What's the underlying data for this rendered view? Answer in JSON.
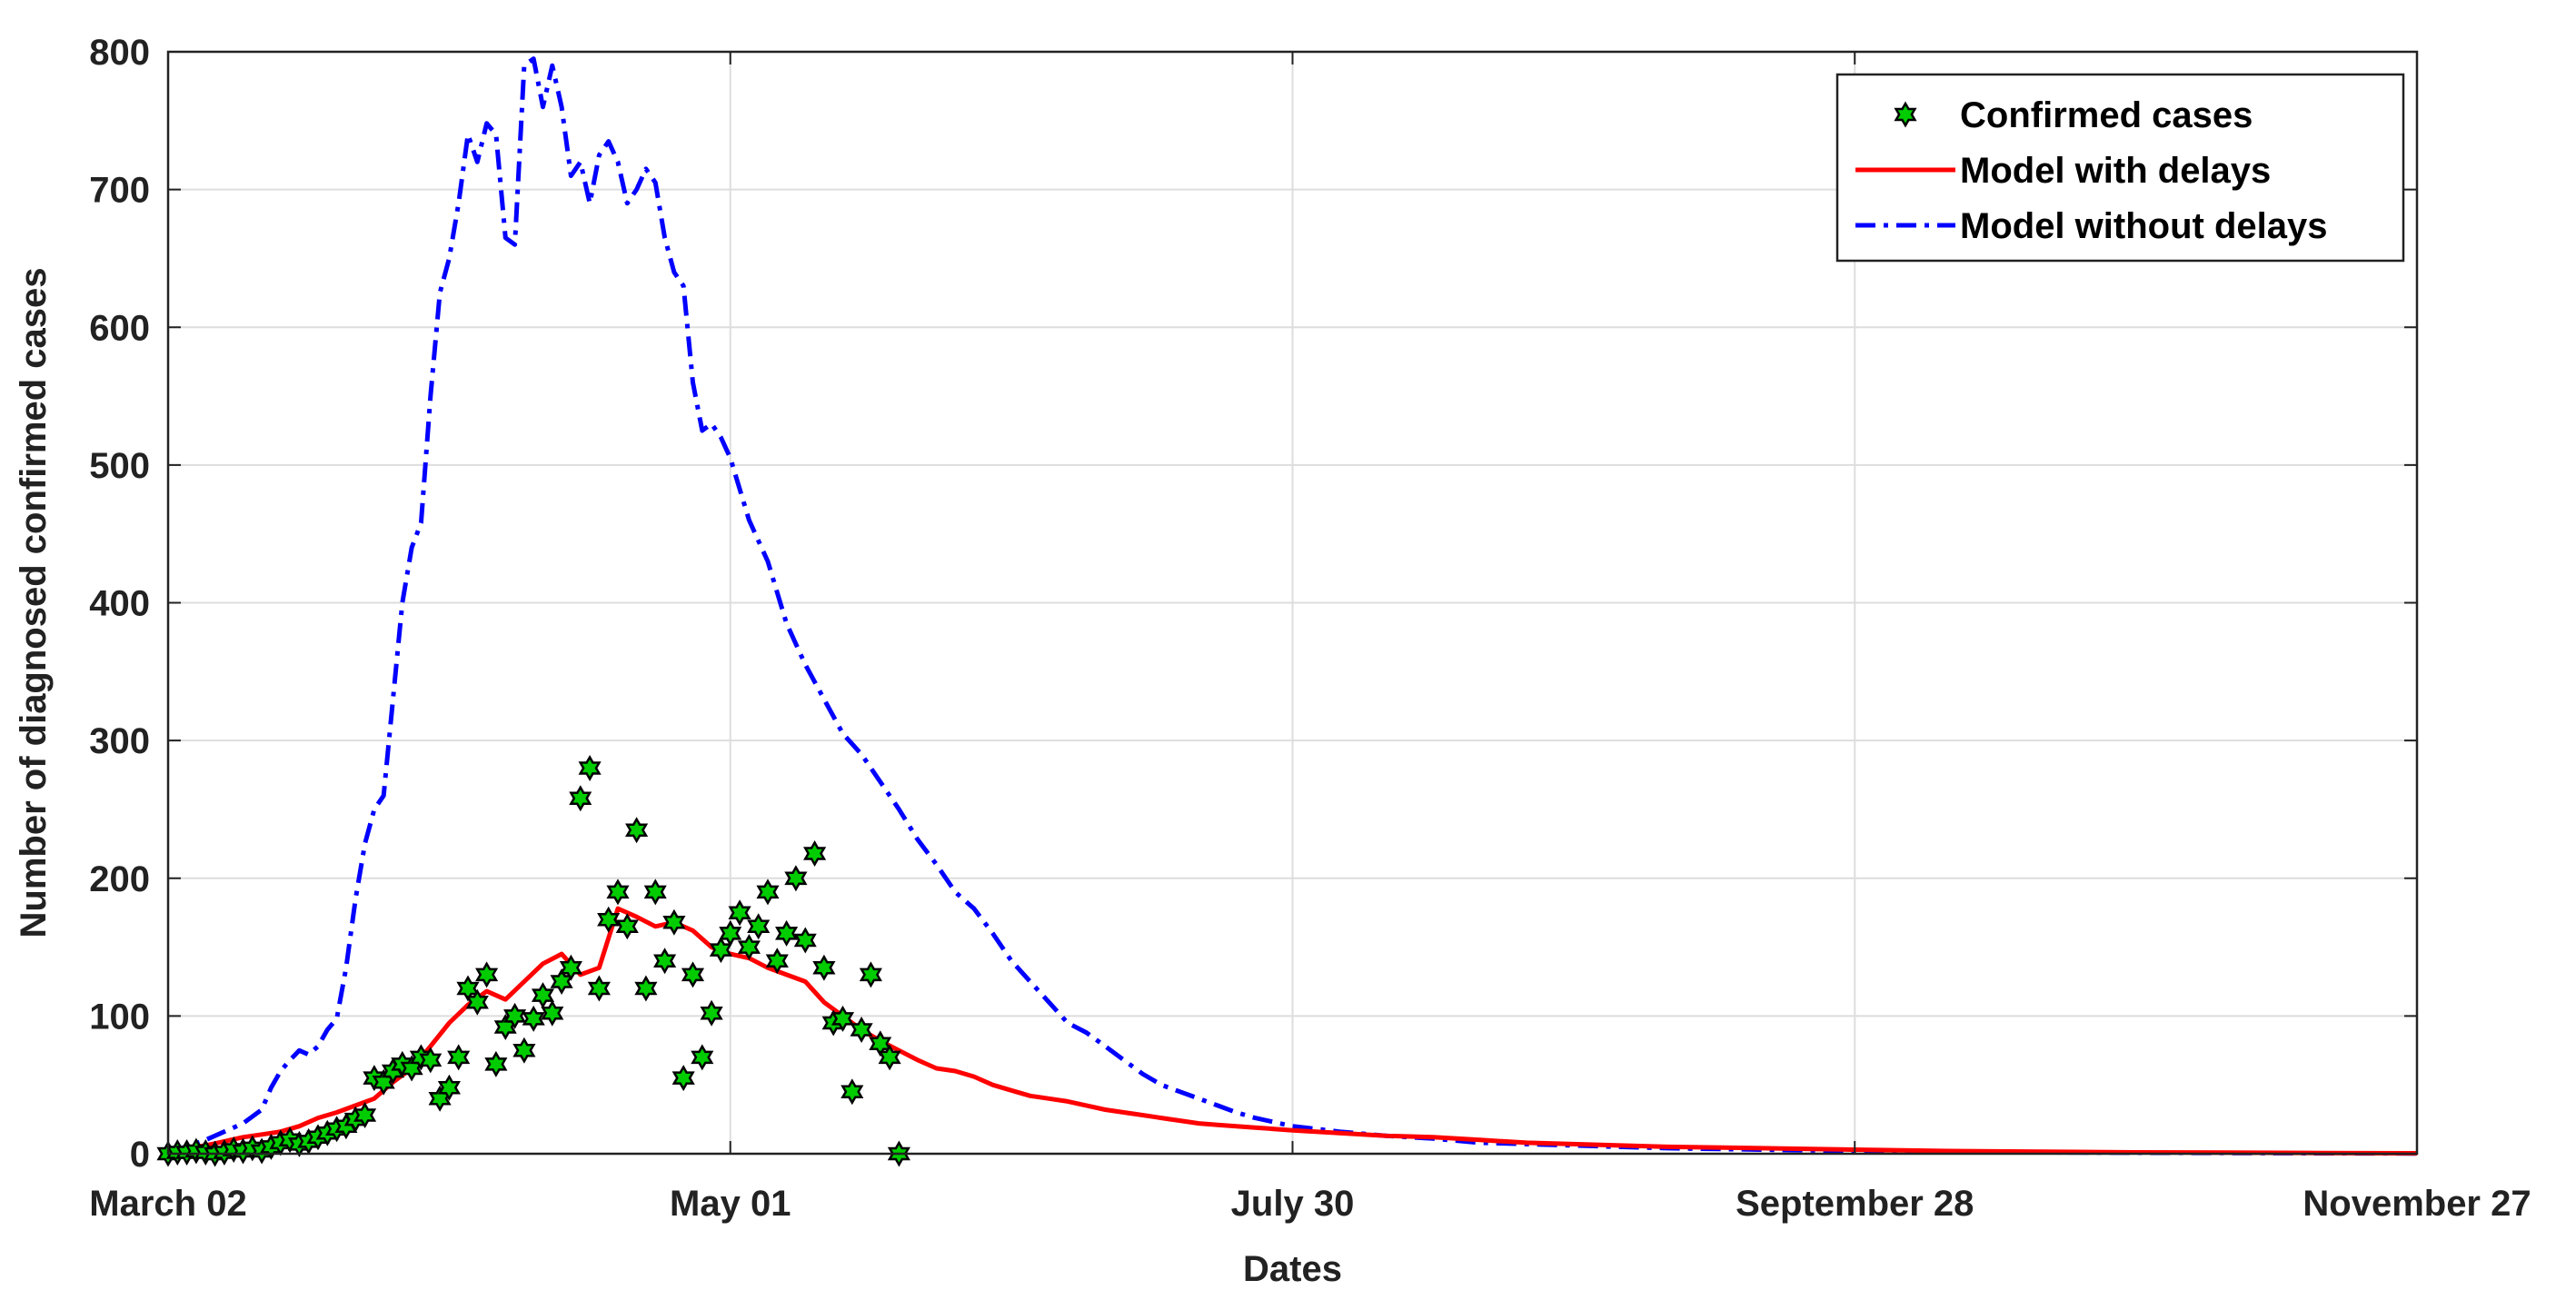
{
  "chart_data": {
    "type": "line",
    "title": "",
    "xlabel": "Dates",
    "ylabel": "Number of diagnosed confirmed cases",
    "x_tick_labels": [
      "March 02",
      "May 01",
      "July 30",
      "September 28",
      "November 27"
    ],
    "x_tick_days": [
      0,
      60,
      120,
      180,
      240
    ],
    "xlim_days": [
      0,
      240
    ],
    "y_ticks": [
      0,
      100,
      200,
      300,
      400,
      500,
      600,
      700,
      800
    ],
    "ylim": [
      0,
      800
    ],
    "grid": true,
    "legend_position": "top-right",
    "series": [
      {
        "name": "Confirmed cases",
        "kind": "markers",
        "marker": "hexagram",
        "color": "#00cc00",
        "x_days": [
          0,
          1,
          2,
          3,
          4,
          5,
          6,
          7,
          8,
          9,
          10,
          11,
          12,
          13,
          14,
          15,
          16,
          17,
          18,
          19,
          20,
          21,
          22,
          23,
          24,
          25,
          26,
          27,
          28,
          29,
          30,
          31,
          32,
          33,
          34,
          35,
          36,
          37,
          38,
          39,
          40,
          41,
          42,
          43,
          44,
          45,
          46,
          47,
          48,
          49,
          50,
          51,
          52,
          53,
          54,
          55,
          56,
          57,
          58,
          59,
          60,
          61,
          62,
          63,
          64,
          65,
          66,
          67,
          68,
          69,
          70,
          71,
          72,
          73,
          74,
          75,
          76,
          77,
          78
        ],
        "values": [
          0,
          1,
          1,
          2,
          1,
          0,
          1,
          3,
          2,
          4,
          2,
          5,
          8,
          10,
          7,
          9,
          12,
          15,
          18,
          20,
          25,
          28,
          55,
          52,
          60,
          65,
          62,
          70,
          68,
          40,
          48,
          70,
          120,
          110,
          130,
          65,
          92,
          100,
          75,
          98,
          115,
          102,
          125,
          135,
          258,
          280,
          120,
          170,
          190,
          165,
          235,
          120,
          190,
          140,
          168,
          55,
          130,
          70,
          102,
          148,
          160,
          175,
          150,
          165,
          190,
          140,
          160,
          200,
          155,
          218,
          135,
          95,
          98,
          45,
          90,
          130,
          80,
          70,
          0
        ]
      },
      {
        "name": "Model with delays",
        "kind": "line",
        "style": "solid",
        "color": "#ff0000",
        "x_days": [
          0,
          2,
          4,
          6,
          8,
          10,
          12,
          14,
          16,
          18,
          20,
          22,
          24,
          26,
          28,
          30,
          32,
          34,
          36,
          38,
          40,
          42,
          44,
          46,
          48,
          50,
          52,
          54,
          56,
          58,
          60,
          62,
          64,
          66,
          68,
          70,
          72,
          74,
          76,
          78,
          80,
          82,
          84,
          86,
          88,
          90,
          92,
          94,
          96,
          98,
          100,
          102,
          104,
          106,
          108,
          110,
          112,
          114,
          116,
          118,
          120,
          125,
          130,
          135,
          140,
          145,
          150,
          155,
          160,
          170,
          180,
          190,
          200,
          210,
          220,
          230,
          240
        ],
        "values": [
          2,
          4,
          6,
          9,
          12,
          14,
          16,
          20,
          26,
          30,
          35,
          40,
          52,
          62,
          78,
          95,
          108,
          118,
          112,
          125,
          138,
          145,
          130,
          135,
          178,
          172,
          165,
          168,
          162,
          150,
          145,
          142,
          135,
          130,
          125,
          110,
          100,
          90,
          82,
          75,
          68,
          62,
          60,
          56,
          50,
          46,
          42,
          40,
          38,
          35,
          32,
          30,
          28,
          26,
          24,
          22,
          21,
          20,
          19,
          18,
          17,
          15,
          13,
          12,
          10,
          8,
          7,
          6,
          5,
          4,
          3,
          2,
          1.5,
          1,
          0.8,
          0.5,
          0.3
        ]
      },
      {
        "name": "Model without delays",
        "kind": "line",
        "style": "dash-dot",
        "color": "#0000ff",
        "x_days": [
          0,
          2,
          4,
          6,
          8,
          10,
          11,
          12,
          13,
          14,
          15,
          16,
          17,
          18,
          19,
          20,
          21,
          22,
          23,
          24,
          25,
          26,
          27,
          28,
          29,
          30,
          31,
          32,
          33,
          34,
          35,
          36,
          37,
          38,
          39,
          40,
          41,
          42,
          43,
          44,
          45,
          46,
          47,
          48,
          49,
          50,
          51,
          52,
          53,
          54,
          55,
          56,
          57,
          58,
          59,
          60,
          62,
          64,
          66,
          68,
          70,
          72,
          74,
          76,
          78,
          80,
          82,
          84,
          86,
          88,
          90,
          92,
          94,
          96,
          98,
          100,
          102,
          104,
          106,
          108,
          110,
          112,
          114,
          116,
          118,
          120,
          125,
          130,
          135,
          140,
          145,
          150,
          160,
          170,
          180,
          190,
          200,
          210,
          220,
          230,
          240
        ],
        "values": [
          2,
          5,
          10,
          16,
          22,
          32,
          48,
          60,
          68,
          75,
          72,
          78,
          90,
          98,
          135,
          185,
          225,
          250,
          260,
          330,
          400,
          440,
          458,
          550,
          625,
          650,
          690,
          740,
          720,
          748,
          740,
          665,
          660,
          790,
          795,
          760,
          790,
          760,
          710,
          720,
          690,
          725,
          735,
          720,
          690,
          700,
          715,
          705,
          665,
          640,
          630,
          560,
          525,
          530,
          520,
          505,
          460,
          430,
          385,
          355,
          330,
          305,
          290,
          270,
          250,
          228,
          210,
          190,
          178,
          160,
          140,
          125,
          110,
          95,
          88,
          78,
          68,
          58,
          50,
          45,
          40,
          35,
          30,
          26,
          23,
          20,
          16,
          13,
          11,
          8,
          7,
          6,
          4,
          3,
          2,
          1.5,
          1,
          0.7,
          0.5,
          0.3,
          0.2
        ]
      }
    ]
  }
}
